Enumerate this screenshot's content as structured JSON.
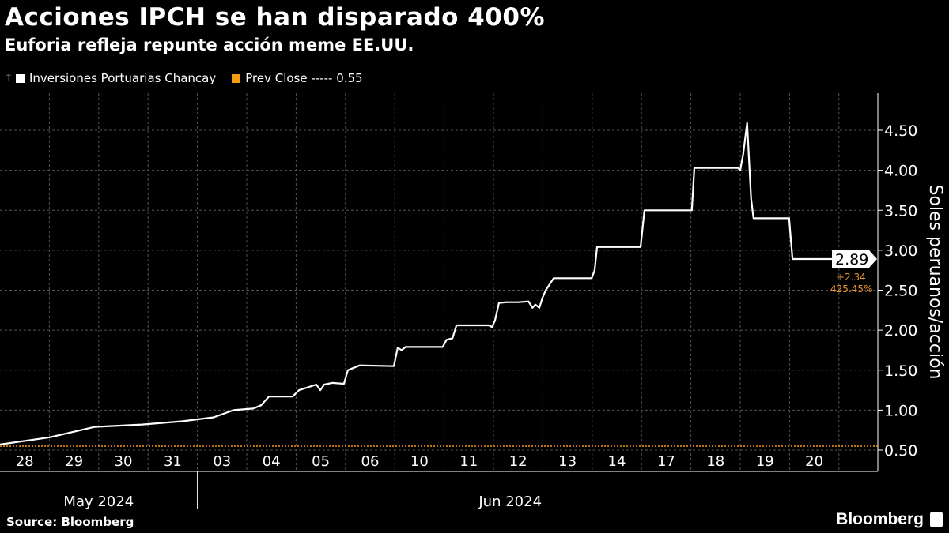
{
  "header": {
    "title": "Acciones IPCH se han disparado 400%",
    "subtitle": "Euforia refleja repunte acción meme EE.UU."
  },
  "legend": {
    "series_label": "Inversiones Portuarias Chancay",
    "prev_close_label": "Prev Close ----- 0.55"
  },
  "footer": {
    "source": "Source: Bloomberg",
    "logo": "Bloomberg"
  },
  "colors": {
    "line": "#ffffff",
    "prev_close": "#f39c12",
    "grid": "#666666"
  },
  "chart_data": {
    "type": "line",
    "title": "Acciones IPCH se han disparado 400%",
    "ylabel": "Soles peruanos/acción",
    "ylim": [
      0.3,
      4.85
    ],
    "yticks": [
      0.5,
      1.0,
      1.5,
      2.0,
      2.5,
      3.0,
      3.5,
      4.0,
      4.5
    ],
    "ytick_labels": [
      "0.50",
      "1.00",
      "1.50",
      "2.00",
      "2.50",
      "3.00",
      "3.50",
      "4.00",
      "4.50"
    ],
    "x_categories": [
      "28",
      "29",
      "30",
      "31",
      "03",
      "04",
      "05",
      "06",
      "10",
      "11",
      "12",
      "13",
      "14",
      "17",
      "18",
      "19",
      "20"
    ],
    "months": [
      {
        "label": "May 2024",
        "from": 0,
        "to": 4
      },
      {
        "label": "Jun 2024",
        "from": 4,
        "to": 17
      }
    ],
    "prev_close": 0.55,
    "last": {
      "value_label": "2.89",
      "change": "+2.34",
      "change_pct": "425.45%",
      "value": 2.89
    },
    "series": [
      {
        "name": "Inversiones Portuarias Chancay",
        "points": [
          [
            0,
            0.57
          ],
          [
            1.01,
            0.66
          ],
          [
            1.92,
            0.79
          ],
          [
            2.88,
            0.82
          ],
          [
            3.69,
            0.86
          ],
          [
            4.33,
            0.91
          ],
          [
            4.73,
            1.0
          ],
          [
            5.13,
            1.02
          ],
          [
            5.29,
            1.06
          ],
          [
            5.45,
            1.17
          ],
          [
            5.93,
            1.17
          ],
          [
            6.06,
            1.25
          ],
          [
            6.41,
            1.32
          ],
          [
            6.49,
            1.25
          ],
          [
            6.57,
            1.32
          ],
          [
            6.73,
            1.34
          ],
          [
            6.97,
            1.33
          ],
          [
            7.05,
            1.5
          ],
          [
            7.29,
            1.56
          ],
          [
            7.98,
            1.55
          ],
          [
            8.06,
            1.78
          ],
          [
            8.14,
            1.75
          ],
          [
            8.22,
            1.79
          ],
          [
            8.97,
            1.79
          ],
          [
            9.05,
            1.88
          ],
          [
            9.17,
            1.9
          ],
          [
            9.25,
            2.06
          ],
          [
            9.9,
            2.06
          ],
          [
            9.97,
            2.04
          ],
          [
            10.03,
            2.12
          ],
          [
            10.11,
            2.34
          ],
          [
            10.26,
            2.35
          ],
          [
            10.5,
            2.35
          ],
          [
            10.71,
            2.36
          ],
          [
            10.79,
            2.28
          ],
          [
            10.85,
            2.32
          ],
          [
            10.93,
            2.28
          ],
          [
            10.99,
            2.4
          ],
          [
            11.06,
            2.5
          ],
          [
            11.22,
            2.65
          ],
          [
            11.99,
            2.65
          ],
          [
            12.05,
            2.75
          ],
          [
            12.1,
            3.04
          ],
          [
            12.98,
            3.04
          ],
          [
            13.06,
            3.5
          ],
          [
            14.02,
            3.5
          ],
          [
            14.07,
            4.03
          ],
          [
            14.95,
            4.03
          ],
          [
            15.0,
            4.0
          ],
          [
            15.06,
            4.2
          ],
          [
            15.14,
            4.59
          ],
          [
            15.22,
            3.65
          ],
          [
            15.27,
            3.4
          ],
          [
            15.99,
            3.4
          ],
          [
            16.06,
            2.89
          ],
          [
            17.02,
            2.89
          ]
        ]
      }
    ]
  }
}
